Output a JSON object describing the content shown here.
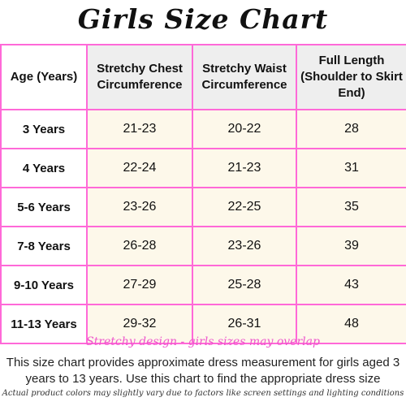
{
  "title": "Girls Size Chart",
  "table": {
    "headers": [
      "Age (Years)",
      "Stretchy Chest Circumference",
      "Stretchy Waist Circumference",
      "Full Length (Shoulder to Skirt End)"
    ],
    "rows": [
      [
        "3 Years",
        "21-23",
        "20-22",
        "28"
      ],
      [
        "4 Years",
        "22-24",
        "21-23",
        "31"
      ],
      [
        "5-6 Years",
        "23-26",
        "22-25",
        "35"
      ],
      [
        "7-8 Years",
        "26-28",
        "23-26",
        "39"
      ],
      [
        "9-10 Years",
        "27-29",
        "25-28",
        "43"
      ],
      [
        "11-13 Years",
        "29-32",
        "26-31",
        "48"
      ]
    ]
  },
  "note": "Stretchy design - girls sizes may overlap",
  "description": "This size chart provides approximate dress measurement for girls aged 3 years  to 13 years. Use this chart to find the appropriate dress size",
  "disclaimer": "Actual product colors may slightly vary due to factors like screen settings and lighting conditions",
  "colors": {
    "border": "#ff69d8",
    "header_bg": "#eeeeee",
    "cell_bg": "#fdf8ea",
    "note": "#ee55cc"
  }
}
